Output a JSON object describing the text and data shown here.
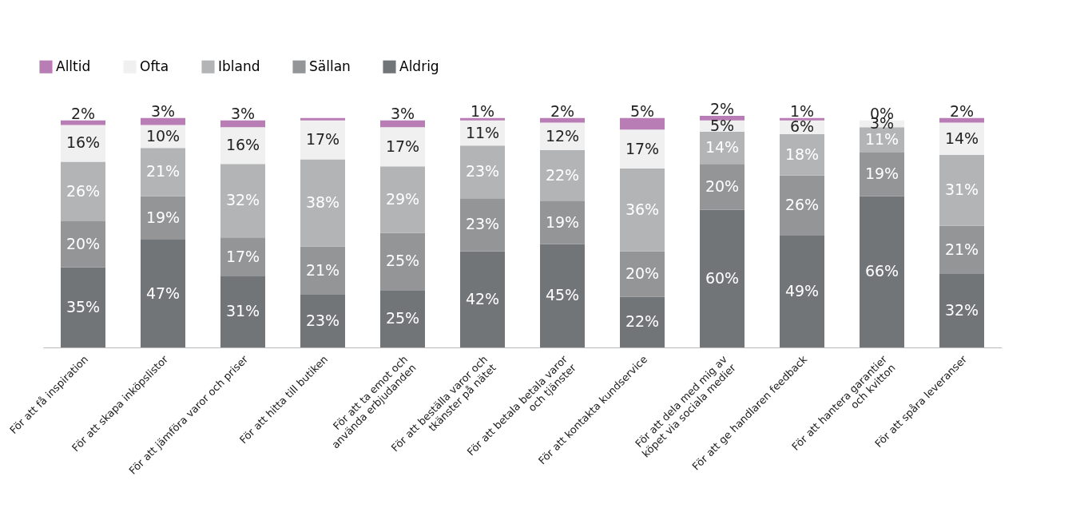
{
  "chart_data": {
    "type": "bar",
    "stacked": true,
    "legend": "top left",
    "grid": false,
    "categories": [
      "För att få inspiration",
      "För att skapa inköpslistor",
      "För att jämföra varor och priser",
      "För att hitta till butiken",
      "För att ta emot och\nanvända erbjudanden",
      "För att beställa varor och\ntkänster på nätet",
      "För att betala betala varor\noch tjänster",
      "För att kontakta kundservice",
      "För att dela med mig av\nköpet via sociala medier",
      "För att ge handlaren feedback",
      "För att hantera garantier\noch kvitton",
      "För att spåra leveranser"
    ],
    "series": [
      {
        "name": "Aldrig",
        "color": "#727578",
        "values": [
          35,
          47,
          31,
          23,
          25,
          42,
          45,
          22,
          60,
          49,
          66,
          32
        ],
        "value_labels": [
          "35%",
          "47%",
          "31%",
          "23%",
          "25%",
          "42%",
          "45%",
          "22%",
          "60%",
          "49%",
          "66%",
          "32%"
        ]
      },
      {
        "name": "Sällan",
        "color": "#939596",
        "values": [
          20,
          19,
          17,
          21,
          25,
          23,
          19,
          20,
          20,
          26,
          19,
          21
        ],
        "value_labels": [
          "20%",
          "19%",
          "17%",
          "21%",
          "25%",
          "23%",
          "19%",
          "20%",
          "20%",
          "26%",
          "19%",
          "21%"
        ]
      },
      {
        "name": "Ibland",
        "color": "#b3b4b5",
        "values": [
          26,
          21,
          32,
          38,
          29,
          23,
          22,
          36,
          14,
          18,
          11,
          31
        ],
        "value_labels": [
          "26%",
          "21%",
          "32%",
          "38%",
          "29%",
          "23%",
          "22%",
          "36%",
          "14%",
          "18%",
          "11%",
          "31%"
        ]
      },
      {
        "name": "Ofta",
        "color": "#f0f0f0",
        "values": [
          16,
          10,
          16,
          17,
          17,
          11,
          12,
          17,
          5,
          6,
          3,
          14
        ],
        "value_labels": [
          "16%",
          "10%",
          "16%",
          "17%",
          "17%",
          "11%",
          "12%",
          "17%",
          "5%",
          "6%",
          "3%",
          "14%"
        ]
      },
      {
        "name": "Alltid",
        "color": "#b87db5",
        "values": [
          2,
          3,
          3,
          1,
          3,
          1,
          2,
          5,
          2,
          1,
          0,
          2
        ],
        "value_labels": [
          "2%",
          "3%",
          "3%",
          null,
          "3%",
          "1%",
          "2%",
          "5%",
          "2%",
          "1%",
          "0%",
          "2%"
        ]
      }
    ]
  }
}
